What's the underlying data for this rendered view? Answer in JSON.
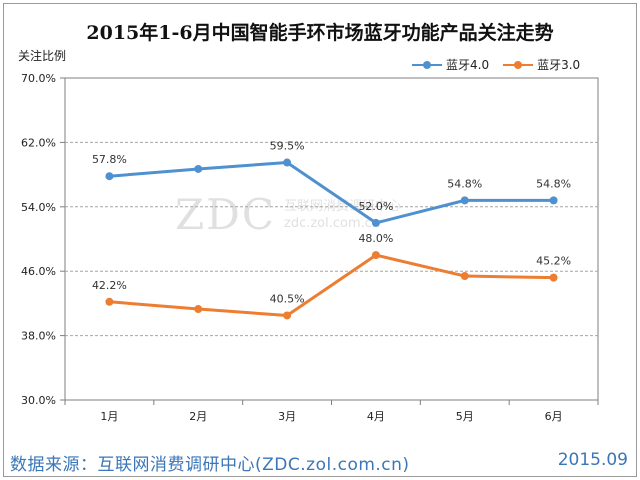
{
  "title": "2015年1-6月中国智能手环市场蓝牙功能产品关注走势",
  "y_axis_title": "关注比例",
  "footer_source": "数据来源：互联网消费调研中心(ZDC.zol.com.cn)",
  "footer_date": "2015.09",
  "watermark": {
    "logo": "ZDC",
    "line1": "互联网消费调研中心",
    "line2": "zdc.zol.com.cn"
  },
  "colors": {
    "bt40": "#4f91cf",
    "bt30": "#ed7d31",
    "grid": "#a6a6a6",
    "axis": "#7f7f7f"
  },
  "chart_data": {
    "type": "line",
    "title": "2015年1-6月中国智能手环市场蓝牙功能产品关注走势",
    "ylabel": "关注比例",
    "xlabel": "",
    "categories": [
      "1月",
      "2月",
      "3月",
      "4月",
      "5月",
      "6月"
    ],
    "ylim": [
      30,
      70
    ],
    "yticks": [
      30,
      38,
      46,
      54,
      62,
      70
    ],
    "ytick_labels": [
      "30.0%",
      "38.0%",
      "46.0%",
      "54.0%",
      "62.0%",
      "70.0%"
    ],
    "grid": "horizontal dashed",
    "legend_position": "top-right",
    "series": [
      {
        "name": "蓝牙4.0",
        "values": [
          57.8,
          58.7,
          59.5,
          52.0,
          54.8,
          54.8
        ],
        "labels": [
          "57.8%",
          "",
          "59.5%",
          "52.0%",
          "54.8%",
          "54.8%"
        ]
      },
      {
        "name": "蓝牙3.0",
        "values": [
          42.2,
          41.3,
          40.5,
          48.0,
          45.4,
          45.2
        ],
        "labels": [
          "42.2%",
          "",
          "40.5%",
          "48.0%",
          "",
          "45.2%"
        ]
      }
    ]
  }
}
